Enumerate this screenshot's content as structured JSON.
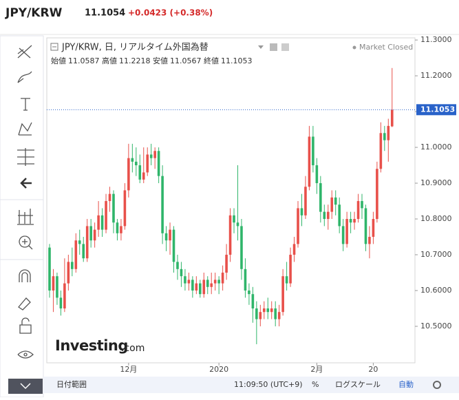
{
  "header": {
    "symbol": "JPY/KRW",
    "price": 11.1054,
    "change": "+0.0423 (+0.38%)"
  },
  "chart_data": {
    "type": "candlestick",
    "title": "JPY/KRW, 日, リアルタイム外国為替",
    "status": "Market Closed",
    "ohlc_labels": [
      "始値",
      "高値",
      "安値",
      "終値"
    ],
    "categories": [
      null,
      null,
      null,
      null,
      null,
      null,
      null,
      null,
      null,
      null,
      null,
      null,
      null,
      null,
      null,
      null,
      null,
      null,
      null,
      null,
      null,
      "12月",
      null,
      null,
      null,
      null,
      null,
      null,
      null,
      null,
      null,
      null,
      null,
      null,
      null,
      null,
      null,
      null,
      null,
      null,
      null,
      null,
      null,
      null,
      null,
      "2020",
      null,
      null,
      null,
      null,
      null,
      null,
      null,
      null,
      null,
      null,
      null,
      null,
      null,
      null,
      null,
      null,
      null,
      null,
      null,
      null,
      null,
      null,
      null,
      null,
      null,
      "2月",
      null,
      null,
      null,
      null,
      null,
      null,
      null,
      null,
      null,
      null,
      null,
      null,
      null,
      null,
      "20",
      null,
      null,
      null,
      null,
      null
    ],
    "open": [
      10.72,
      10.6,
      10.64,
      10.58,
      10.55,
      10.62,
      10.68,
      10.66,
      10.74,
      10.73,
      10.69,
      10.78,
      10.74,
      10.77,
      10.81,
      10.77,
      10.85,
      10.87,
      10.79,
      10.76,
      10.78,
      10.88,
      10.97,
      10.96,
      10.95,
      10.91,
      10.93,
      10.98,
      10.97,
      10.99,
      10.92,
      10.76,
      10.74,
      10.77,
      10.68,
      10.66,
      10.64,
      10.62,
      10.63,
      10.6,
      10.62,
      10.59,
      10.63,
      10.61,
      10.62,
      10.63,
      10.62,
      10.65,
      10.7,
      10.81,
      10.79,
      10.78,
      10.66,
      10.6,
      10.59,
      10.55,
      10.52,
      10.54,
      10.55,
      10.54,
      10.55,
      10.52,
      10.54,
      10.64,
      10.62,
      10.7,
      10.73,
      10.83,
      10.81,
      10.89,
      11.03,
      10.95,
      10.9,
      10.82,
      10.8,
      10.82,
      10.86,
      10.84,
      10.78,
      10.73,
      10.8,
      10.79,
      10.8,
      10.85,
      10.83,
      10.73,
      10.75,
      10.8,
      10.94,
      11.04,
      11.02,
      11.0587
    ],
    "high": [
      10.73,
      10.66,
      10.65,
      10.6,
      10.69,
      10.7,
      10.72,
      10.76,
      10.77,
      10.75,
      10.8,
      10.8,
      10.79,
      10.85,
      10.83,
      10.87,
      10.89,
      10.88,
      10.8,
      10.8,
      10.9,
      11.01,
      11.01,
      11.0,
      10.98,
      11.0,
      11.0,
      11.01,
      11.0,
      11.0,
      10.95,
      10.78,
      10.79,
      10.78,
      10.7,
      10.68,
      10.66,
      10.65,
      10.64,
      10.64,
      10.63,
      10.65,
      10.64,
      10.65,
      10.65,
      10.64,
      10.67,
      10.73,
      10.83,
      10.83,
      10.95,
      10.8,
      10.69,
      10.62,
      10.61,
      10.57,
      10.56,
      10.57,
      10.58,
      10.57,
      10.57,
      10.56,
      10.66,
      10.68,
      10.72,
      10.75,
      10.85,
      10.87,
      10.92,
      11.06,
      11.06,
      10.97,
      10.92,
      10.84,
      10.84,
      10.88,
      10.88,
      10.86,
      10.8,
      10.82,
      10.82,
      10.82,
      10.87,
      10.87,
      10.84,
      10.78,
      10.82,
      10.96,
      11.07,
      11.06,
      11.08,
      11.2218
    ],
    "low": [
      10.58,
      10.54,
      10.56,
      10.53,
      10.54,
      10.6,
      10.64,
      10.65,
      10.7,
      10.68,
      10.68,
      10.72,
      10.72,
      10.75,
      10.75,
      10.76,
      10.82,
      10.76,
      10.74,
      10.74,
      10.77,
      10.86,
      10.93,
      10.92,
      10.9,
      10.9,
      10.92,
      10.95,
      10.94,
      10.9,
      10.73,
      10.71,
      10.7,
      10.65,
      10.63,
      10.61,
      10.6,
      10.6,
      10.58,
      10.59,
      10.58,
      10.58,
      10.59,
      10.59,
      10.6,
      10.59,
      10.6,
      10.63,
      10.68,
      10.76,
      10.74,
      10.63,
      10.58,
      10.56,
      10.51,
      10.45,
      10.5,
      10.52,
      10.52,
      10.52,
      10.5,
      10.5,
      10.53,
      10.6,
      10.61,
      10.68,
      10.72,
      10.78,
      10.8,
      10.88,
      10.93,
      10.87,
      10.79,
      10.78,
      10.77,
      10.8,
      10.81,
      10.76,
      10.71,
      10.72,
      10.76,
      10.77,
      10.79,
      10.8,
      10.71,
      10.69,
      10.73,
      10.79,
      10.93,
      10.99,
      10.96,
      11.0567
    ],
    "close": [
      10.6,
      10.64,
      10.58,
      10.55,
      10.62,
      10.68,
      10.66,
      10.74,
      10.73,
      10.69,
      10.78,
      10.74,
      10.77,
      10.81,
      10.77,
      10.85,
      10.87,
      10.79,
      10.76,
      10.78,
      10.88,
      10.97,
      10.96,
      10.95,
      10.91,
      10.93,
      10.98,
      10.97,
      10.99,
      10.92,
      10.76,
      10.74,
      10.77,
      10.68,
      10.66,
      10.64,
      10.62,
      10.63,
      10.6,
      10.62,
      10.59,
      10.63,
      10.61,
      10.62,
      10.63,
      10.62,
      10.65,
      10.7,
      10.81,
      10.79,
      10.78,
      10.66,
      10.6,
      10.59,
      10.55,
      10.52,
      10.54,
      10.55,
      10.54,
      10.55,
      10.52,
      10.54,
      10.64,
      10.62,
      10.7,
      10.73,
      10.83,
      10.81,
      10.89,
      11.03,
      10.95,
      10.9,
      10.82,
      10.8,
      10.82,
      10.86,
      10.84,
      10.78,
      10.73,
      10.8,
      10.79,
      10.8,
      10.85,
      10.83,
      10.73,
      10.75,
      10.8,
      10.94,
      11.04,
      11.02,
      11.06,
      11.1053
    ],
    "up_color": "#e8504a",
    "down_color": "#2fb56a",
    "price_line_color": "#2962c9",
    "ylim": [
      10.398,
      11.306
    ],
    "yticks": [
      {
        "value": 10.5,
        "label": "10.5000"
      },
      {
        "value": 10.6,
        "label": "10.6000"
      },
      {
        "value": 10.7,
        "label": "10.7000"
      },
      {
        "value": 10.8,
        "label": "10.8000"
      },
      {
        "value": 10.9,
        "label": "10.9000"
      },
      {
        "value": 11,
        "label": "11.0000"
      },
      {
        "value": 11.1,
        "label": "11.1000"
      },
      {
        "value": 11.2,
        "label": "11.2000"
      },
      {
        "value": 11.3,
        "label": "11.3000"
      }
    ],
    "watermark": [
      "Investing",
      ".com"
    ]
  },
  "bottom_bar": {
    "range": "日付範囲",
    "time": "11:09:50 (UTC+9)",
    "percent": "%",
    "log": "ログスケール",
    "auto": "自動"
  }
}
